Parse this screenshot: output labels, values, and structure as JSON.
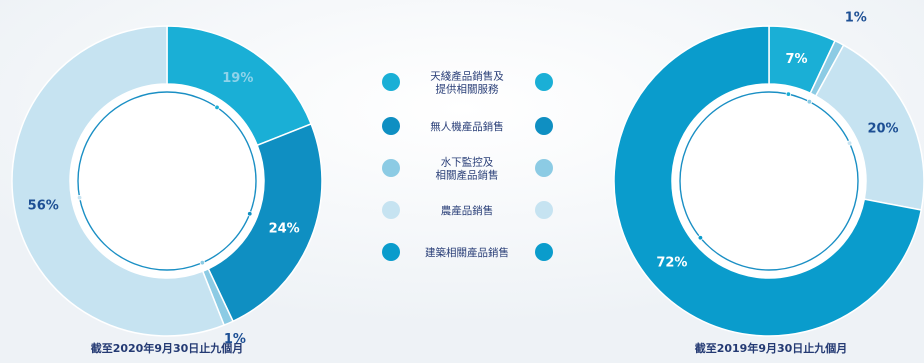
{
  "legend": {
    "items": [
      {
        "label": "天綫產品銷售及\n提供相關服務",
        "color": "#1aafd6"
      },
      {
        "label": "無人機產品銷售",
        "color": "#0f8fc2"
      },
      {
        "label": "水下監控及\n相關產品銷售",
        "color": "#8ccbe4"
      },
      {
        "label": "農產品銷售",
        "color": "#c6e3f1"
      },
      {
        "label": "建築相關產品銷售",
        "color": "#0a9ccc"
      }
    ]
  },
  "chart_data": [
    {
      "type": "pie",
      "caption": "截至2020年9月30日止九個月",
      "categories": [
        "天綫產品銷售及提供相關服務",
        "無人機產品銷售",
        "水下監控及相關產品銷售",
        "農產品銷售"
      ],
      "values": [
        19,
        24,
        1,
        56
      ],
      "value_labels": [
        "19%",
        "24%",
        "1%",
        "56%"
      ],
      "colors": [
        "#1aafd6",
        "#0f8fc2",
        "#8ccbe4",
        "#c6e3f1"
      ]
    },
    {
      "type": "pie",
      "caption": "截至2019年9月30日止九個月",
      "categories": [
        "天綫產品銷售及提供相關服務",
        "水下監控及相關產品銷售",
        "農產品銷售",
        "建築相關產品銷售"
      ],
      "values": [
        7,
        1,
        20,
        72
      ],
      "value_labels": [
        "7%",
        "1%",
        "20%",
        "72%"
      ],
      "colors": [
        "#1aafd6",
        "#8ccbe4",
        "#c6e3f1",
        "#0a9ccc"
      ]
    }
  ]
}
